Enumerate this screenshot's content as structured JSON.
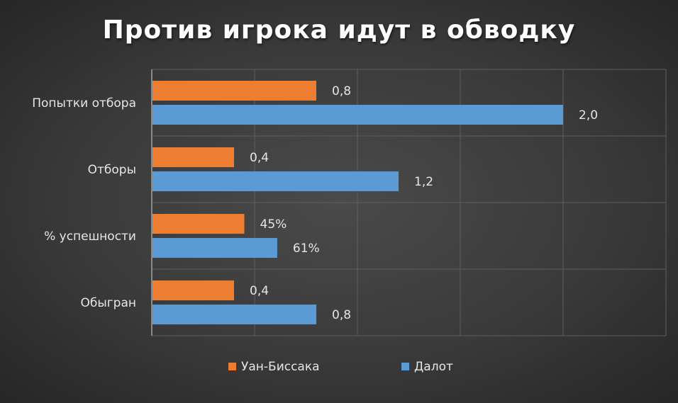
{
  "chart_data": {
    "type": "bar",
    "orientation": "horizontal",
    "title": "Против игрока идут в обводку",
    "categories": [
      "Попытки отбора",
      "Отборы",
      "% успешности",
      "Обыгран"
    ],
    "series": [
      {
        "name": "Уан-Биссака",
        "color": "#ED7D31",
        "values": [
          0.8,
          0.4,
          0.45,
          0.4
        ],
        "labels": [
          "0,8",
          "0,4",
          "45%",
          "0,4"
        ]
      },
      {
        "name": "Далот",
        "color": "#5B9BD5",
        "values": [
          2.0,
          1.2,
          0.61,
          0.8
        ],
        "labels": [
          "2,0",
          "1,2",
          "61%",
          "0,8"
        ]
      }
    ],
    "xlim": [
      0,
      2.5
    ],
    "grid_step": 0.5,
    "grid": true,
    "legend": "bottom"
  }
}
